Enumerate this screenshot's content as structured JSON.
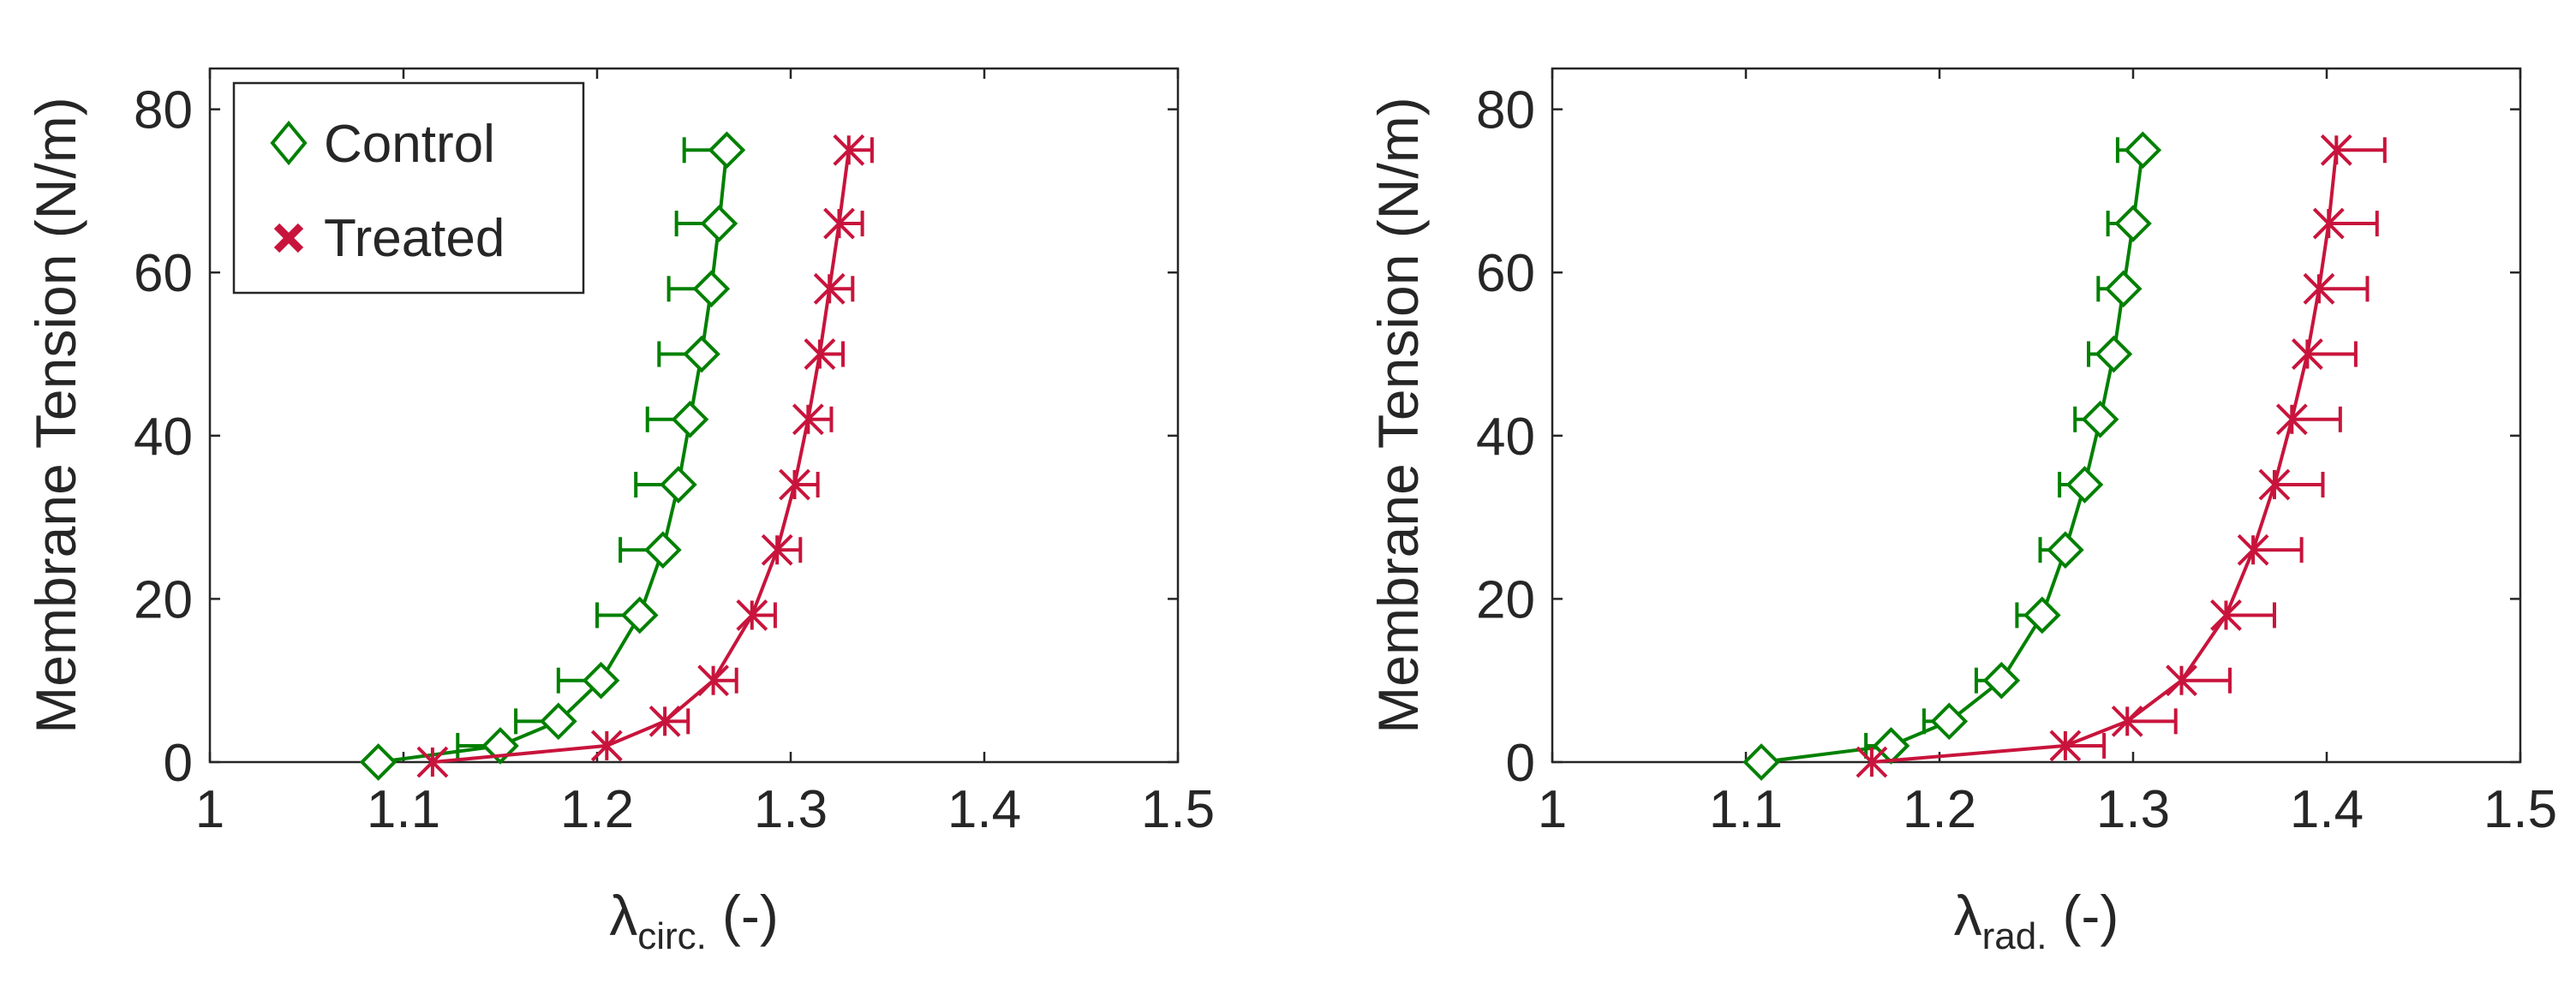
{
  "legend": {
    "items": [
      {
        "label": "Control",
        "color": "#008000",
        "marker": "diamond"
      },
      {
        "label": "Treated",
        "color": "#C8143C",
        "marker": "asterisk"
      }
    ],
    "position": "top-left"
  },
  "chart_data": [
    {
      "type": "line",
      "title": "",
      "xlabel_symbol": "λ",
      "xlabel_sub": "circ.",
      "xlabel_suffix": "(-)",
      "ylabel": "Membrane Tension (N/m)",
      "xlim": [
        1,
        1.5
      ],
      "ylim": [
        0,
        85
      ],
      "xticks": [
        1,
        1.1,
        1.2,
        1.3,
        1.4,
        1.5
      ],
      "xtick_labels": [
        "1",
        "1.1",
        "1.2",
        "1.3",
        "1.4",
        "1.5"
      ],
      "yticks": [
        0,
        20,
        40,
        60,
        80
      ],
      "ytick_labels": [
        "0",
        "20",
        "40",
        "60",
        "80"
      ],
      "grid": false,
      "legend": true,
      "series": [
        {
          "name": "Control",
          "color": "#008000",
          "marker": "diamond",
          "y": [
            0,
            2,
            5,
            10,
            18,
            26,
            34,
            42,
            50,
            58,
            66,
            75
          ],
          "x": [
            1.087,
            1.15,
            1.18,
            1.202,
            1.222,
            1.234,
            1.242,
            1.248,
            1.254,
            1.259,
            1.263,
            1.267
          ],
          "err_minus": [
            0,
            0.022,
            0.022,
            0.022,
            0.022,
            0.022,
            0.022,
            0.022,
            0.022,
            0.022,
            0.022,
            0.022
          ],
          "err_plus": [
            0,
            0,
            0,
            0,
            0,
            0,
            0,
            0,
            0,
            0,
            0,
            0
          ]
        },
        {
          "name": "Treated",
          "color": "#C8143C",
          "marker": "asterisk",
          "y": [
            0,
            2,
            5,
            10,
            18,
            26,
            34,
            42,
            50,
            58,
            66,
            75
          ],
          "x": [
            1.115,
            1.205,
            1.235,
            1.26,
            1.28,
            1.293,
            1.302,
            1.309,
            1.315,
            1.32,
            1.325,
            1.33
          ],
          "err_minus": [
            0,
            0,
            0,
            0,
            0,
            0,
            0,
            0,
            0,
            0,
            0,
            0
          ],
          "err_plus": [
            0,
            0,
            0.012,
            0.012,
            0.012,
            0.012,
            0.012,
            0.012,
            0.012,
            0.012,
            0.012,
            0.012
          ]
        }
      ]
    },
    {
      "type": "line",
      "title": "",
      "xlabel_symbol": "λ",
      "xlabel_sub": "rad.",
      "xlabel_suffix": "(-)",
      "ylabel": "Membrane Tension (N/m)",
      "xlim": [
        1,
        1.5
      ],
      "ylim": [
        0,
        85
      ],
      "xticks": [
        1,
        1.1,
        1.2,
        1.3,
        1.4,
        1.5
      ],
      "xtick_labels": [
        "1",
        "1.1",
        "1.2",
        "1.3",
        "1.4",
        "1.5"
      ],
      "yticks": [
        0,
        20,
        40,
        60,
        80
      ],
      "ytick_labels": [
        "0",
        "20",
        "40",
        "60",
        "80"
      ],
      "grid": false,
      "legend": false,
      "series": [
        {
          "name": "Control",
          "color": "#008000",
          "marker": "diamond",
          "y": [
            0,
            2,
            5,
            10,
            18,
            26,
            34,
            42,
            50,
            58,
            66,
            75
          ],
          "x": [
            1.108,
            1.175,
            1.205,
            1.232,
            1.253,
            1.265,
            1.275,
            1.283,
            1.29,
            1.295,
            1.3,
            1.305
          ],
          "err_minus": [
            0,
            0.013,
            0.013,
            0.013,
            0.013,
            0.013,
            0.013,
            0.013,
            0.013,
            0.013,
            0.013,
            0.013
          ],
          "err_plus": [
            0,
            0,
            0,
            0,
            0,
            0,
            0,
            0,
            0,
            0,
            0,
            0
          ]
        },
        {
          "name": "Treated",
          "color": "#C8143C",
          "marker": "asterisk",
          "y": [
            0,
            2,
            5,
            10,
            18,
            26,
            34,
            42,
            50,
            58,
            66,
            75
          ],
          "x": [
            1.165,
            1.265,
            1.297,
            1.325,
            1.348,
            1.362,
            1.373,
            1.382,
            1.39,
            1.396,
            1.401,
            1.405
          ],
          "err_minus": [
            0,
            0,
            0,
            0,
            0,
            0,
            0,
            0,
            0,
            0,
            0,
            0
          ],
          "err_plus": [
            0,
            0.02,
            0.025,
            0.025,
            0.025,
            0.025,
            0.025,
            0.025,
            0.025,
            0.025,
            0.025,
            0.025
          ]
        }
      ]
    }
  ]
}
